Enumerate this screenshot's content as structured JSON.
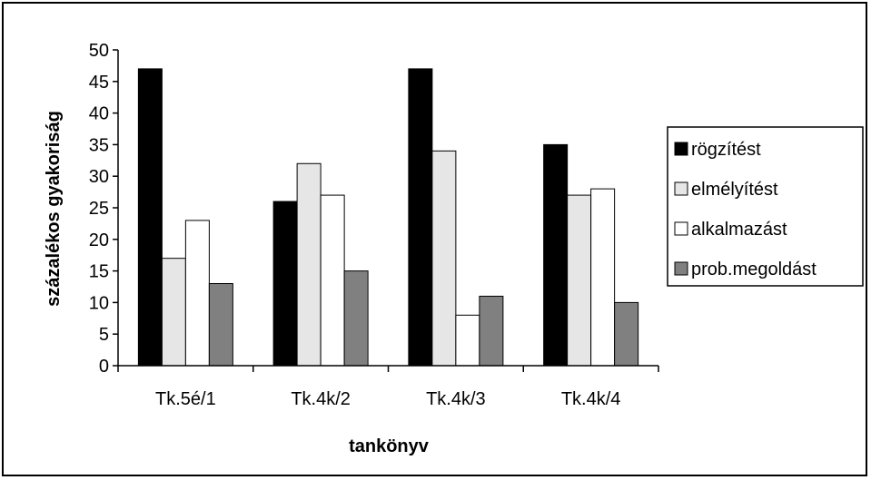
{
  "chart_data": {
    "type": "bar",
    "title": "",
    "xlabel": "tankönyv",
    "ylabel": "százalékos gyakoriság",
    "ylim": [
      0,
      50
    ],
    "yticks": [
      0,
      5,
      10,
      15,
      20,
      25,
      30,
      35,
      40,
      45,
      50
    ],
    "categories": [
      "Tk.5é/1",
      "Tk.4k/2",
      "Tk.4k/3",
      "Tk.4k/4"
    ],
    "series": [
      {
        "name": "rögzítést",
        "color": "#000000",
        "values": [
          47,
          26,
          47,
          35
        ]
      },
      {
        "name": "elmélyítést",
        "color": "#e6e6e6",
        "values": [
          17,
          32,
          34,
          27
        ]
      },
      {
        "name": "alkalmazást",
        "color": "#ffffff",
        "values": [
          23,
          27,
          8,
          28
        ]
      },
      {
        "name": "prob.megoldást",
        "color": "#808080",
        "values": [
          13,
          15,
          11,
          10
        ]
      }
    ],
    "grid": false,
    "legend_position": "right"
  }
}
